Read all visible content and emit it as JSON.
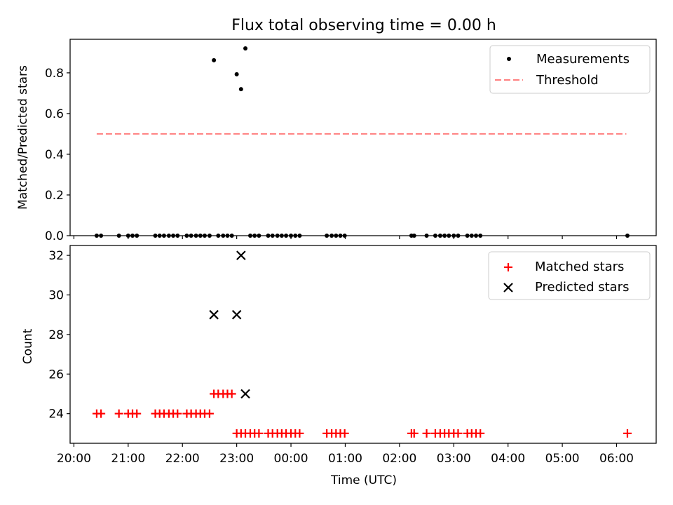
{
  "colors": {
    "measurement": "#000000",
    "threshold": "#ff7f7f",
    "matched": "#ff0000",
    "predicted": "#000000"
  },
  "chart_data": [
    {
      "type": "scatter",
      "title": "Flux total observing time = 0.00 h",
      "ylabel": "Matched/Predicted stars",
      "xlabel": "",
      "xlim": [
        19.93,
        30.73
      ],
      "ylim": [
        0,
        0.965
      ],
      "yticks": [
        0.0,
        0.2,
        0.4,
        0.6,
        0.8
      ],
      "ytick_labels": [
        "0.0",
        "0.2",
        "0.4",
        "0.6",
        "0.8"
      ],
      "legend": {
        "position": "top-right",
        "items": [
          "Measurements",
          "Threshold"
        ]
      },
      "threshold": {
        "y": 0.5,
        "x_range": [
          20.42,
          30.18
        ]
      },
      "measurements": {
        "x": [
          20.42,
          20.5,
          20.83,
          21.0,
          21.08,
          21.16,
          21.5,
          21.58,
          21.66,
          21.75,
          21.83,
          21.91,
          22.08,
          22.16,
          22.25,
          22.33,
          22.41,
          22.5,
          22.58,
          22.66,
          22.75,
          22.83,
          22.91,
          23.0,
          23.08,
          23.16,
          23.25,
          23.33,
          23.41,
          23.58,
          23.66,
          23.75,
          23.83,
          23.91,
          24.0,
          24.08,
          24.16,
          24.66,
          24.75,
          24.83,
          24.91,
          24.99,
          26.22,
          26.27,
          26.5,
          26.66,
          26.75,
          26.83,
          26.91,
          27.0,
          27.08,
          27.25,
          27.33,
          27.41,
          27.49,
          30.2
        ],
        "y": [
          0,
          0,
          0,
          0,
          0,
          0,
          0,
          0,
          0,
          0,
          0,
          0,
          0,
          0,
          0,
          0,
          0,
          0,
          0.862,
          0,
          0,
          0,
          0,
          0.793,
          0.72,
          0.92,
          0,
          0,
          0,
          0,
          0,
          0,
          0,
          0,
          0,
          0,
          0,
          0,
          0,
          0,
          0,
          0,
          0,
          0,
          0,
          0,
          0,
          0,
          0,
          0,
          0,
          0,
          0,
          0,
          0,
          0
        ]
      }
    },
    {
      "type": "scatter",
      "title": "",
      "ylabel": "Count",
      "xlabel": "Time (UTC)",
      "xlim": [
        19.93,
        30.73
      ],
      "ylim": [
        22.5,
        32.5
      ],
      "yticks": [
        24,
        26,
        28,
        30,
        32
      ],
      "ytick_labels": [
        "24",
        "26",
        "28",
        "30",
        "32"
      ],
      "xticks": [
        20,
        21,
        22,
        23,
        24,
        25,
        26,
        27,
        28,
        29,
        30
      ],
      "xtick_labels": [
        "20:00",
        "21:00",
        "22:00",
        "23:00",
        "00:00",
        "01:00",
        "02:00",
        "03:00",
        "04:00",
        "05:00",
        "06:00"
      ],
      "legend": {
        "position": "top-right",
        "items": [
          "Matched stars",
          "Predicted stars"
        ]
      },
      "series": [
        {
          "name": "Matched stars",
          "x": [
            20.42,
            20.5,
            20.83,
            21.0,
            21.08,
            21.16,
            21.5,
            21.58,
            21.66,
            21.75,
            21.83,
            21.91,
            22.08,
            22.16,
            22.25,
            22.33,
            22.41,
            22.5,
            22.58,
            22.66,
            22.75,
            22.83,
            22.91,
            23.0,
            23.08,
            23.16,
            23.25,
            23.33,
            23.41,
            23.58,
            23.66,
            23.75,
            23.83,
            23.91,
            24.0,
            24.08,
            24.16,
            24.66,
            24.75,
            24.83,
            24.91,
            24.99,
            26.22,
            26.27,
            26.5,
            26.66,
            26.75,
            26.83,
            26.91,
            27.0,
            27.08,
            27.25,
            27.33,
            27.41,
            27.49,
            30.2
          ],
          "y": [
            24,
            24,
            24,
            24,
            24,
            24,
            24,
            24,
            24,
            24,
            24,
            24,
            24,
            24,
            24,
            24,
            24,
            24,
            25,
            25,
            25,
            25,
            25,
            23,
            23,
            23,
            23,
            23,
            23,
            23,
            23,
            23,
            23,
            23,
            23,
            23,
            23,
            23,
            23,
            23,
            23,
            23,
            23,
            23,
            23,
            23,
            23,
            23,
            23,
            23,
            23,
            23,
            23,
            23,
            23,
            23
          ]
        },
        {
          "name": "Predicted stars",
          "x": [
            22.58,
            23.0,
            23.08,
            23.16
          ],
          "y": [
            29,
            29,
            32,
            25
          ]
        }
      ]
    }
  ]
}
